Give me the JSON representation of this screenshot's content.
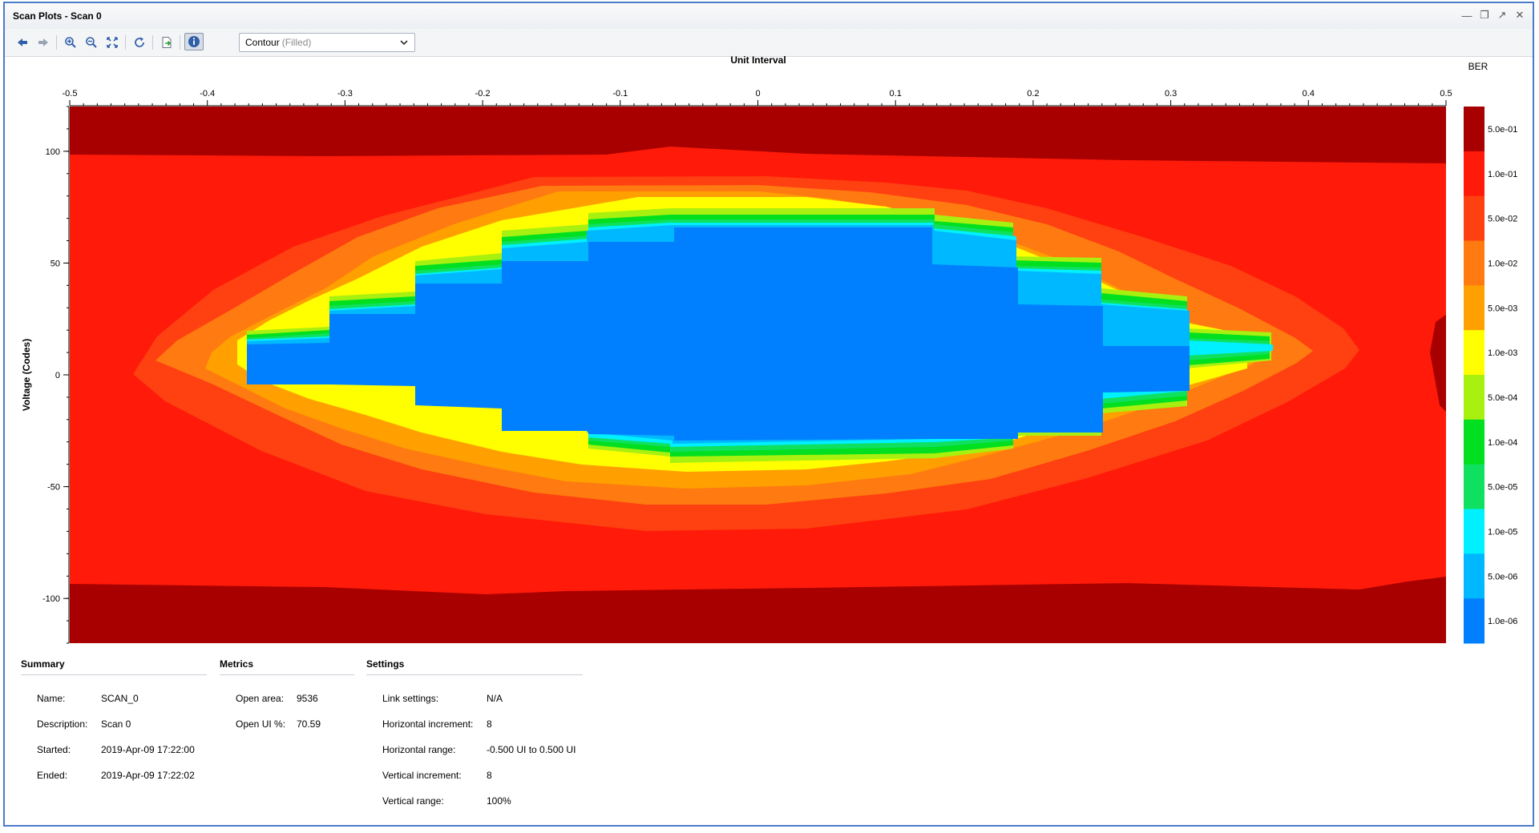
{
  "window": {
    "title": "Scan Plots - Scan 0"
  },
  "toolbar": {
    "plot_type": "Contour",
    "plot_type_suffix": "(Filled)"
  },
  "chart_data": {
    "type": "heatmap",
    "xlabel": "Unit Interval",
    "ylabel": "Voltage (Codes)",
    "xlim": [
      -0.5,
      0.5
    ],
    "ylim": [
      -120,
      120
    ],
    "x_ticks": [
      "-0.5",
      "-0.4",
      "-0.3",
      "-0.2",
      "-0.1",
      "0",
      "0.1",
      "0.2",
      "0.3",
      "0.4",
      "0.5"
    ],
    "y_ticks": [
      "100",
      "50",
      "0",
      "-50",
      "-100"
    ],
    "colorbar": {
      "title": "BER",
      "levels": [
        "5.0e-01",
        "1.0e-01",
        "5.0e-02",
        "1.0e-02",
        "5.0e-03",
        "1.0e-03",
        "5.0e-04",
        "1.0e-04",
        "5.0e-05",
        "1.0e-05",
        "5.0e-06",
        "1.0e-06"
      ],
      "colors": [
        "#a80000",
        "#ff1a0a",
        "#ff4010",
        "#ff7a10",
        "#ffa000",
        "#ffff00",
        "#a8f010",
        "#00e020",
        "#10e060",
        "#00f0ff",
        "#00b8ff",
        "#0080ff"
      ]
    },
    "open_region": {
      "description_units": "x in UI, y in codes",
      "x_half_width": 0.375,
      "y_half_height": 72
    }
  },
  "summary": {
    "heading": "Summary",
    "rows": [
      {
        "label": "Name:",
        "value": "SCAN_0"
      },
      {
        "label": "Description:",
        "value": "Scan 0"
      },
      {
        "label": "Started:",
        "value": "2019-Apr-09 17:22:00"
      },
      {
        "label": "Ended:",
        "value": "2019-Apr-09 17:22:02"
      }
    ]
  },
  "metrics": {
    "heading": "Metrics",
    "rows": [
      {
        "label": "Open area:",
        "value": "9536"
      },
      {
        "label": "Open UI %:",
        "value": "70.59"
      }
    ]
  },
  "settings": {
    "heading": "Settings",
    "rows": [
      {
        "label": "Link settings:",
        "value": "N/A"
      },
      {
        "label": "Horizontal increment:",
        "value": "8"
      },
      {
        "label": "Horizontal range:",
        "value": "-0.500 UI to 0.500 UI"
      },
      {
        "label": "Vertical increment:",
        "value": "8"
      },
      {
        "label": "Vertical range:",
        "value": "100%"
      }
    ]
  }
}
